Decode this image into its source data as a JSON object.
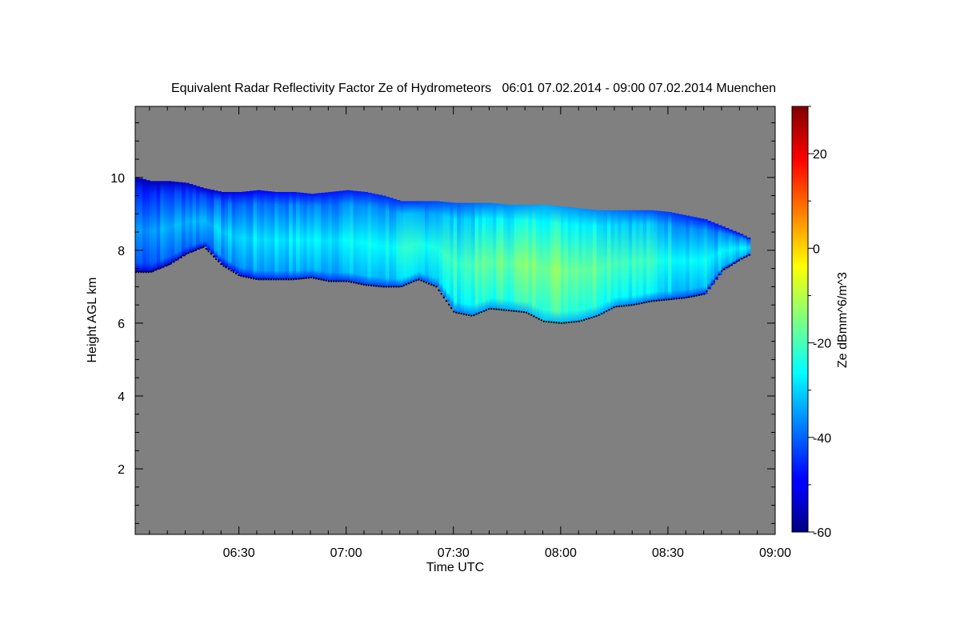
{
  "chart_data": {
    "type": "heatmap",
    "title": "Equivalent Radar Reflectivity Factor Ze of Hydrometeors   06:01 07.02.2014 - 09:00 07.02.2014 Muenchen",
    "xlabel": "Time UTC",
    "ylabel": "Height AGL km",
    "colorbar_label": "Ze dBmm^6/m^3",
    "x_unit": "time UTC",
    "xlim": [
      "06:01",
      "09:00"
    ],
    "ylim": [
      0.2,
      11.95
    ],
    "clim": [
      -60,
      30
    ],
    "background_color": "#808080",
    "colormap": "jet",
    "x_ticks": [
      "06:30",
      "07:00",
      "07:30",
      "08:00",
      "08:30",
      "09:00"
    ],
    "y_ticks": [
      "2",
      "4",
      "6",
      "8",
      "10"
    ],
    "colorbar_ticks": [
      "-60",
      "-40",
      "-20",
      "0",
      "20"
    ],
    "cloud_top_km": [
      [
        "06:01",
        10.0
      ],
      [
        "06:05",
        9.9
      ],
      [
        "06:10",
        9.9
      ],
      [
        "06:15",
        9.85
      ],
      [
        "06:20",
        9.7
      ],
      [
        "06:25",
        9.6
      ],
      [
        "06:30",
        9.6
      ],
      [
        "06:35",
        9.65
      ],
      [
        "06:40",
        9.6
      ],
      [
        "06:45",
        9.6
      ],
      [
        "06:50",
        9.55
      ],
      [
        "06:55",
        9.6
      ],
      [
        "07:00",
        9.65
      ],
      [
        "07:05",
        9.6
      ],
      [
        "07:10",
        9.5
      ],
      [
        "07:15",
        9.35
      ],
      [
        "07:20",
        9.35
      ],
      [
        "07:25",
        9.35
      ],
      [
        "07:30",
        9.3
      ],
      [
        "07:35",
        9.3
      ],
      [
        "07:40",
        9.3
      ],
      [
        "07:45",
        9.25
      ],
      [
        "07:50",
        9.25
      ],
      [
        "07:55",
        9.25
      ],
      [
        "08:00",
        9.2
      ],
      [
        "08:05",
        9.15
      ],
      [
        "08:10",
        9.1
      ],
      [
        "08:15",
        9.1
      ],
      [
        "08:20",
        9.1
      ],
      [
        "08:25",
        9.1
      ],
      [
        "08:30",
        9.05
      ],
      [
        "08:35",
        8.95
      ],
      [
        "08:40",
        8.85
      ],
      [
        "08:45",
        8.65
      ],
      [
        "08:50",
        8.45
      ],
      [
        "08:53",
        8.3
      ]
    ],
    "cloud_base_km": [
      [
        "06:01",
        7.4
      ],
      [
        "06:05",
        7.4
      ],
      [
        "06:10",
        7.6
      ],
      [
        "06:15",
        7.9
      ],
      [
        "06:20",
        8.1
      ],
      [
        "06:25",
        7.6
      ],
      [
        "06:30",
        7.3
      ],
      [
        "06:35",
        7.2
      ],
      [
        "06:40",
        7.2
      ],
      [
        "06:45",
        7.2
      ],
      [
        "06:50",
        7.25
      ],
      [
        "06:55",
        7.15
      ],
      [
        "07:00",
        7.15
      ],
      [
        "07:05",
        7.05
      ],
      [
        "07:10",
        7.0
      ],
      [
        "07:15",
        7.0
      ],
      [
        "07:20",
        7.2
      ],
      [
        "07:25",
        7.0
      ],
      [
        "07:30",
        6.3
      ],
      [
        "07:35",
        6.2
      ],
      [
        "07:40",
        6.4
      ],
      [
        "07:45",
        6.35
      ],
      [
        "07:50",
        6.3
      ],
      [
        "07:55",
        6.05
      ],
      [
        "08:00",
        6.0
      ],
      [
        "08:05",
        6.05
      ],
      [
        "08:10",
        6.2
      ],
      [
        "08:15",
        6.45
      ],
      [
        "08:20",
        6.5
      ],
      [
        "08:25",
        6.6
      ],
      [
        "08:30",
        6.65
      ],
      [
        "08:35",
        6.7
      ],
      [
        "08:40",
        6.8
      ],
      [
        "08:45",
        7.45
      ],
      [
        "08:50",
        7.75
      ],
      [
        "08:53",
        7.9
      ]
    ],
    "ze_core_dbz": [
      [
        "06:01",
        -35
      ],
      [
        "06:20",
        -32
      ],
      [
        "06:40",
        -28
      ],
      [
        "07:00",
        -27
      ],
      [
        "07:20",
        -24
      ],
      [
        "07:40",
        -18
      ],
      [
        "07:55",
        -14
      ],
      [
        "08:10",
        -17
      ],
      [
        "08:30",
        -24
      ],
      [
        "08:53",
        -30
      ]
    ]
  }
}
